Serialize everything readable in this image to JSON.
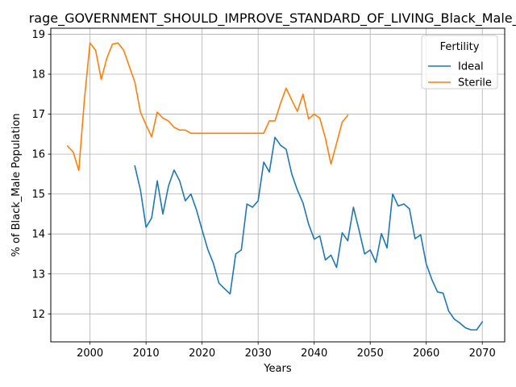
{
  "chart_data": {
    "type": "line",
    "title": "rage_GOVERNMENT_SHOULD_IMPROVE_STANDARD_OF_LIVING_Black_Male_P",
    "xlabel": "Years",
    "ylabel": "% of Black_Male Population",
    "xlim": [
      1993,
      2074
    ],
    "ylim": [
      11.3,
      19.15
    ],
    "xticks": [
      2000,
      2010,
      2020,
      2030,
      2040,
      2050,
      2060,
      2070
    ],
    "yticks": [
      12,
      13,
      14,
      15,
      16,
      17,
      18,
      19
    ],
    "grid": true,
    "legend": {
      "title": "Fertility",
      "placement": "top-right"
    },
    "series": [
      {
        "name": "Ideal",
        "color": "#1f77b4",
        "x": [
          2008,
          2009,
          2010,
          2011,
          2012,
          2013,
          2014,
          2015,
          2016,
          2017,
          2018,
          2019,
          2020,
          2021,
          2022,
          2023,
          2024,
          2025,
          2026,
          2027,
          2028,
          2029,
          2030,
          2031,
          2032,
          2033,
          2034,
          2035,
          2036,
          2037,
          2038,
          2039,
          2040,
          2041,
          2042,
          2043,
          2044,
          2045,
          2046,
          2047,
          2048,
          2049,
          2050,
          2051,
          2052,
          2053,
          2054,
          2055,
          2056,
          2057,
          2058,
          2059,
          2060,
          2061,
          2062,
          2063,
          2064,
          2065,
          2066,
          2067,
          2068,
          2069,
          2070
        ],
        "y": [
          15.7,
          15.1,
          14.17,
          14.4,
          15.33,
          14.5,
          15.2,
          15.6,
          15.33,
          14.83,
          15.0,
          14.6,
          14.1,
          13.62,
          13.27,
          12.77,
          12.63,
          12.5,
          13.5,
          13.6,
          14.75,
          14.67,
          14.83,
          15.8,
          15.55,
          16.42,
          16.22,
          16.12,
          15.5,
          15.1,
          14.78,
          14.25,
          13.87,
          13.95,
          13.35,
          13.47,
          13.16,
          14.03,
          13.83,
          14.67,
          14.1,
          13.5,
          13.6,
          13.29,
          14.01,
          13.65,
          15.0,
          14.7,
          14.75,
          14.63,
          13.88,
          13.98,
          13.25,
          12.86,
          12.55,
          12.52,
          12.07,
          11.87,
          11.77,
          11.65,
          11.6,
          11.6,
          11.8
        ]
      },
      {
        "name": "Sterile",
        "color": "#ff7f0e",
        "x": [
          1996,
          1997,
          1998,
          1999,
          2000,
          2001,
          2002,
          2003,
          2004,
          2005,
          2006,
          2007,
          2008,
          2009,
          2010,
          2011,
          2012,
          2013,
          2014,
          2015,
          2016,
          2017,
          2018,
          2019,
          2020,
          2021,
          2022,
          2023,
          2024,
          2025,
          2026,
          2027,
          2028,
          2029,
          2030,
          2031,
          2032,
          2033,
          2034,
          2035,
          2036,
          2037,
          2038,
          2039,
          2040,
          2041,
          2042,
          2043,
          2044,
          2045,
          2046
        ],
        "y": [
          16.2,
          16.05,
          15.59,
          17.37,
          18.78,
          18.6,
          17.87,
          18.4,
          18.75,
          18.78,
          18.6,
          18.2,
          17.8,
          17.05,
          16.73,
          16.43,
          17.05,
          16.9,
          16.83,
          16.67,
          16.6,
          16.6,
          16.52,
          16.52,
          16.52,
          16.52,
          16.52,
          16.52,
          16.52,
          16.52,
          16.52,
          16.52,
          16.52,
          16.52,
          16.52,
          16.52,
          16.83,
          16.83,
          17.27,
          17.65,
          17.35,
          17.07,
          17.5,
          16.88,
          17.0,
          16.9,
          16.4,
          15.75,
          16.27,
          16.8,
          16.97
        ]
      }
    ]
  }
}
